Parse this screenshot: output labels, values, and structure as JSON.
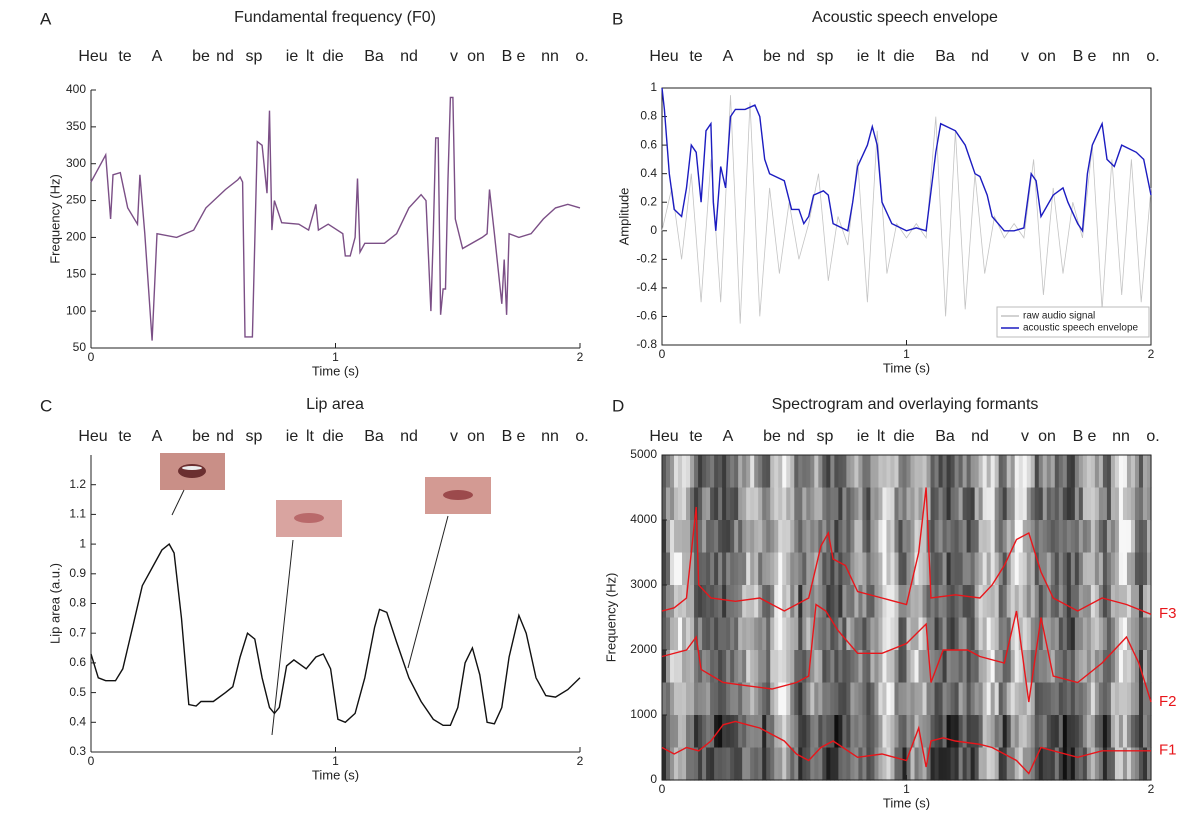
{
  "syllables": [
    "Heu",
    "te",
    "A",
    "be",
    "nd",
    "sp",
    "ie",
    "lt",
    "die",
    "Ba",
    "nd",
    "v",
    "on",
    "B",
    "e",
    "nn",
    "o."
  ],
  "chart_data": [
    {
      "type": "line",
      "panel": "A",
      "title": "Fundamental frequency (F0)",
      "xlabel": "Time (s)",
      "ylabel": "Frequency (Hz)",
      "xlim": [
        0,
        2
      ],
      "xticks": [
        0,
        1,
        2
      ],
      "ylim": [
        50,
        400
      ],
      "yticks": [
        50,
        100,
        150,
        200,
        250,
        300,
        350,
        400
      ],
      "series": [
        {
          "color": "#7b4f86",
          "x": [
            0,
            0.06,
            0.08,
            0.09,
            0.12,
            0.15,
            0.19,
            0.2,
            0.22,
            0.25,
            0.27,
            0.35,
            0.42,
            0.47,
            0.55,
            0.6,
            0.61,
            0.62,
            0.63,
            0.66,
            0.68,
            0.7,
            0.72,
            0.73,
            0.74,
            0.75,
            0.78,
            0.85,
            0.89,
            0.92,
            0.93,
            0.97,
            1.03,
            1.04,
            1.06,
            1.08,
            1.09,
            1.1,
            1.12,
            1.2,
            1.25,
            1.3,
            1.35,
            1.37,
            1.39,
            1.4,
            1.41,
            1.42,
            1.43,
            1.44,
            1.45,
            1.46,
            1.47,
            1.48,
            1.49,
            1.52,
            1.6,
            1.62,
            1.63,
            1.65,
            1.68,
            1.69,
            1.7,
            1.71,
            1.75,
            1.8,
            1.85,
            1.9,
            1.95,
            2
          ],
          "values": [
            275,
            312,
            225,
            285,
            288,
            240,
            218,
            285,
            205,
            60,
            205,
            200,
            210,
            240,
            265,
            278,
            282,
            275,
            65,
            65,
            330,
            325,
            260,
            372,
            210,
            250,
            220,
            218,
            210,
            245,
            210,
            218,
            205,
            175,
            175,
            200,
            280,
            180,
            192,
            192,
            205,
            240,
            258,
            250,
            100,
            205,
            335,
            335,
            95,
            130,
            130,
            280,
            390,
            390,
            225,
            185,
            200,
            205,
            265,
            205,
            110,
            170,
            95,
            205,
            200,
            205,
            225,
            240,
            245,
            240
          ]
        }
      ]
    },
    {
      "type": "line",
      "panel": "B",
      "title": "Acoustic speech envelope",
      "xlabel": "Time (s)",
      "ylabel": "Amplitude",
      "xlim": [
        0,
        2
      ],
      "xticks": [
        0,
        1,
        2
      ],
      "ylim": [
        -0.8,
        1
      ],
      "yticks": [
        -0.8,
        -0.6,
        -0.4,
        -0.2,
        0,
        0.2,
        0.4,
        0.6,
        0.8,
        1
      ],
      "legend": "lower right",
      "series": [
        {
          "name": "raw audio signal",
          "color": "#c4c4c4",
          "x": [
            0,
            0.04,
            0.08,
            0.12,
            0.16,
            0.2,
            0.24,
            0.28,
            0.32,
            0.36,
            0.4,
            0.44,
            0.48,
            0.52,
            0.56,
            0.6,
            0.64,
            0.68,
            0.72,
            0.76,
            0.8,
            0.84,
            0.88,
            0.92,
            0.96,
            1,
            1.04,
            1.08,
            1.12,
            1.16,
            1.2,
            1.24,
            1.28,
            1.32,
            1.36,
            1.4,
            1.44,
            1.48,
            1.52,
            1.56,
            1.6,
            1.64,
            1.68,
            1.72,
            1.76,
            1.8,
            1.84,
            1.88,
            1.92,
            1.96,
            2
          ],
          "values": [
            0,
            0.3,
            -0.2,
            0.4,
            -0.5,
            0.5,
            -0.5,
            0.95,
            -0.65,
            0.9,
            -0.6,
            0.3,
            -0.3,
            0.2,
            -0.2,
            0.05,
            0.4,
            -0.35,
            0.1,
            -0.1,
            0.5,
            -0.5,
            0.7,
            -0.3,
            0.05,
            -0.05,
            0.05,
            -0.05,
            0.8,
            -0.6,
            0.7,
            -0.55,
            0.4,
            -0.3,
            0.1,
            -0.05,
            0.05,
            -0.05,
            0.5,
            -0.45,
            0.3,
            -0.3,
            0.2,
            -0.05,
            0.6,
            -0.55,
            0.5,
            -0.45,
            0.5,
            -0.5,
            0.3
          ]
        },
        {
          "name": "acoustic speech envelope",
          "color": "#1c1cc0",
          "x": [
            0,
            0.01,
            0.03,
            0.05,
            0.08,
            0.1,
            0.12,
            0.14,
            0.16,
            0.18,
            0.2,
            0.21,
            0.22,
            0.24,
            0.26,
            0.28,
            0.3,
            0.34,
            0.38,
            0.4,
            0.42,
            0.44,
            0.5,
            0.53,
            0.56,
            0.58,
            0.6,
            0.62,
            0.66,
            0.68,
            0.7,
            0.76,
            0.78,
            0.8,
            0.84,
            0.86,
            0.88,
            0.9,
            0.94,
            1,
            1.04,
            1.08,
            1.12,
            1.14,
            1.2,
            1.24,
            1.28,
            1.3,
            1.33,
            1.35,
            1.4,
            1.44,
            1.48,
            1.51,
            1.53,
            1.55,
            1.6,
            1.64,
            1.66,
            1.7,
            1.72,
            1.74,
            1.76,
            1.8,
            1.82,
            1.85,
            1.88,
            1.94,
            1.97,
            2
          ],
          "values": [
            1,
            0.85,
            0.4,
            0.15,
            0.1,
            0.3,
            0.6,
            0.55,
            0.2,
            0.7,
            0.75,
            0.2,
            0,
            0.45,
            0.3,
            0.8,
            0.85,
            0.85,
            0.88,
            0.8,
            0.5,
            0.4,
            0.35,
            0.15,
            0.15,
            0.05,
            0.1,
            0.25,
            0.28,
            0.25,
            0.05,
            0,
            0.2,
            0.45,
            0.6,
            0.73,
            0.6,
            0.2,
            0.05,
            0,
            0.02,
            0,
            0.55,
            0.75,
            0.7,
            0.6,
            0.4,
            0.38,
            0.25,
            0.1,
            0,
            0,
            0.02,
            0.4,
            0.35,
            0.1,
            0.25,
            0.3,
            0.2,
            0.05,
            0,
            0.4,
            0.6,
            0.75,
            0.5,
            0.45,
            0.6,
            0.55,
            0.5,
            0.25
          ]
        }
      ]
    },
    {
      "type": "line",
      "panel": "C",
      "title": "Lip area",
      "xlabel": "Time (s)",
      "ylabel": "Lip area (a.u.)",
      "xlim": [
        0,
        2
      ],
      "xticks": [
        0,
        1,
        2
      ],
      "ylim": [
        0.3,
        1.3
      ],
      "yticks": [
        0.3,
        0.4,
        0.5,
        0.6,
        0.7,
        0.8,
        0.9,
        1,
        1.1,
        1.2
      ],
      "series": [
        {
          "color": "#111111",
          "x": [
            0,
            0.03,
            0.06,
            0.1,
            0.13,
            0.17,
            0.21,
            0.25,
            0.29,
            0.32,
            0.34,
            0.37,
            0.4,
            0.43,
            0.45,
            0.5,
            0.55,
            0.58,
            0.61,
            0.64,
            0.67,
            0.7,
            0.73,
            0.75,
            0.77,
            0.8,
            0.83,
            0.88,
            0.92,
            0.95,
            0.98,
            1.01,
            1.04,
            1.08,
            1.12,
            1.16,
            1.18,
            1.21,
            1.25,
            1.3,
            1.35,
            1.4,
            1.44,
            1.47,
            1.5,
            1.53,
            1.56,
            1.59,
            1.62,
            1.65,
            1.68,
            1.71,
            1.75,
            1.78,
            1.82,
            1.86,
            1.9,
            1.95,
            2
          ],
          "values": [
            0.63,
            0.55,
            0.54,
            0.54,
            0.58,
            0.72,
            0.86,
            0.92,
            0.98,
            1,
            0.97,
            0.75,
            0.46,
            0.455,
            0.47,
            0.47,
            0.5,
            0.52,
            0.62,
            0.7,
            0.68,
            0.55,
            0.45,
            0.43,
            0.45,
            0.59,
            0.61,
            0.58,
            0.62,
            0.63,
            0.58,
            0.41,
            0.4,
            0.43,
            0.55,
            0.72,
            0.78,
            0.77,
            0.67,
            0.55,
            0.47,
            0.41,
            0.39,
            0.39,
            0.45,
            0.6,
            0.65,
            0.56,
            0.4,
            0.395,
            0.45,
            0.62,
            0.76,
            0.7,
            0.55,
            0.49,
            0.485,
            0.51,
            0.55
          ]
        }
      ]
    },
    {
      "type": "line",
      "panel": "D",
      "title": "Spectrogram and overlaying formants",
      "xlabel": "Time (s)",
      "ylabel": "Frequency (Hz)",
      "xlim": [
        0,
        2
      ],
      "xticks": [
        0,
        1,
        2
      ],
      "ylim": [
        0,
        5000
      ],
      "yticks": [
        0,
        1000,
        2000,
        3000,
        4000,
        5000
      ],
      "series": [
        {
          "name": "F3",
          "color": "#e8161b",
          "x": [
            0,
            0.05,
            0.1,
            0.12,
            0.14,
            0.15,
            0.2,
            0.3,
            0.4,
            0.5,
            0.55,
            0.6,
            0.65,
            0.68,
            0.7,
            0.75,
            0.8,
            0.9,
            1,
            1.05,
            1.08,
            1.1,
            1.2,
            1.3,
            1.35,
            1.4,
            1.45,
            1.5,
            1.55,
            1.6,
            1.7,
            1.8,
            1.9,
            2
          ],
          "values": [
            2600,
            2650,
            2800,
            3500,
            4200,
            3000,
            2800,
            2750,
            2800,
            2600,
            2700,
            2800,
            3600,
            3800,
            3400,
            3300,
            2900,
            2800,
            2700,
            3500,
            4500,
            2800,
            2850,
            2800,
            3000,
            3300,
            3700,
            3800,
            3200,
            2800,
            2600,
            2800,
            2700,
            2550
          ]
        },
        {
          "name": "F2",
          "color": "#e8161b",
          "x": [
            0,
            0.1,
            0.14,
            0.16,
            0.25,
            0.35,
            0.45,
            0.55,
            0.6,
            0.63,
            0.67,
            0.72,
            0.8,
            0.9,
            1,
            1.08,
            1.1,
            1.15,
            1.25,
            1.3,
            1.4,
            1.45,
            1.5,
            1.55,
            1.6,
            1.7,
            1.8,
            1.9,
            1.95,
            2
          ],
          "values": [
            1900,
            2000,
            2200,
            1700,
            1500,
            1450,
            1400,
            1500,
            1600,
            2700,
            2600,
            2300,
            1950,
            1950,
            2100,
            2400,
            1500,
            2000,
            2000,
            1900,
            1800,
            2600,
            1200,
            2500,
            1600,
            1500,
            1800,
            2200,
            1800,
            1200
          ]
        },
        {
          "name": "F1",
          "color": "#e8161b",
          "x": [
            0,
            0.05,
            0.1,
            0.15,
            0.2,
            0.25,
            0.3,
            0.35,
            0.4,
            0.5,
            0.55,
            0.6,
            0.65,
            0.7,
            0.8,
            0.9,
            1,
            1.05,
            1.08,
            1.1,
            1.15,
            1.2,
            1.3,
            1.35,
            1.4,
            1.45,
            1.5,
            1.55,
            1.6,
            1.7,
            1.8,
            1.9,
            2
          ],
          "values": [
            500,
            400,
            500,
            450,
            600,
            850,
            900,
            850,
            800,
            600,
            400,
            300,
            500,
            600,
            350,
            400,
            300,
            800,
            200,
            600,
            650,
            600,
            550,
            500,
            400,
            300,
            100,
            500,
            450,
            350,
            450,
            450,
            450
          ]
        }
      ]
    }
  ]
}
